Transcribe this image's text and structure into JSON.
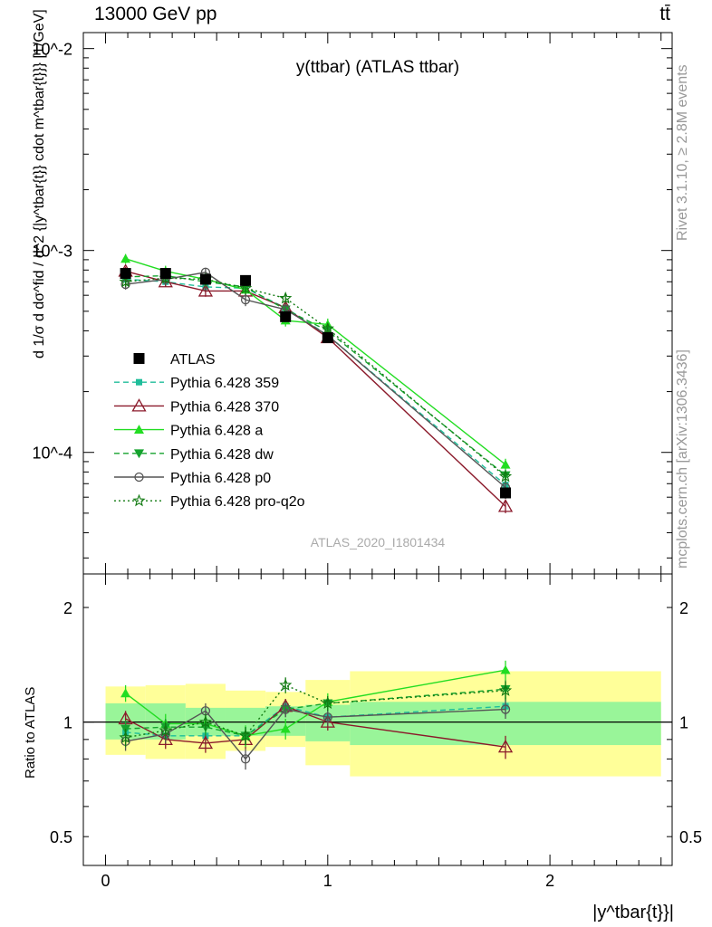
{
  "header": {
    "left": "13000 GeV pp",
    "right": "tt̄"
  },
  "side_labels": {
    "rivet": "Rivet 3.1.10, ≥ 2.8M events",
    "mcplots": "mcplots.cern.ch [arXiv:1306.3436]"
  },
  "plot": {
    "title": "y(ttbar) (ATLAS ttbar)",
    "watermark": "ATLAS_2020_I1801434",
    "ylabel_main": "d 1/σ d dσ^fid / d^2 {|y^tbar{t}} cdot m^tbar{t}}} [1/GeV]",
    "ylabel_ratio": "Ratio to ATLAS",
    "xlabel": "|y^tbar{t}}|"
  },
  "colors": {
    "data": "#000000",
    "p359": "#1fbd9a",
    "p370": "#8b1a2b",
    "pa": "#22dd22",
    "pdw": "#15a32e",
    "pp0": "#555555",
    "ppro": "#117a11",
    "band_inner": "#99f599",
    "band_outer": "#ffff99"
  },
  "chart_data": [
    {
      "type": "scatter",
      "yscale": "log",
      "xlim": [
        -0.1,
        2.55
      ],
      "ylim": [
        2.5e-05,
        0.012
      ],
      "x": [
        0.09,
        0.27,
        0.45,
        0.63,
        0.81,
        1.0,
        1.8
      ],
      "xerr": [
        0.09,
        0.09,
        0.09,
        0.09,
        0.09,
        0.1,
        0.7
      ],
      "yticks": [
        "10^-4",
        "10^-3",
        "10^-2"
      ],
      "series": [
        {
          "name": "ATLAS",
          "key": "data",
          "style": "solid",
          "marker": "square",
          "values": [
            0.00077,
            0.00077,
            0.00072,
            0.00071,
            0.00047,
            0.00037,
            6.3e-05
          ],
          "err": [
            3e-05,
            3e-05,
            3e-05,
            3e-05,
            2e-05,
            2e-05,
            4e-06
          ]
        },
        {
          "name": "Pythia 6.428 359",
          "key": "p359",
          "style": "dash",
          "marker": "square-small",
          "values": [
            0.00072,
            0.0007,
            0.00066,
            0.00065,
            0.00052,
            0.00038,
            6.9e-05
          ],
          "err": [
            4e-05,
            4e-05,
            4e-05,
            4e-05,
            3e-05,
            2e-05,
            5e-06
          ]
        },
        {
          "name": "Pythia 6.428 370",
          "key": "p370",
          "style": "solid",
          "marker": "triangle-open",
          "values": [
            0.00079,
            0.0007,
            0.00063,
            0.00063,
            0.00052,
            0.00037,
            5.4e-05
          ],
          "err": [
            4e-05,
            4e-05,
            4e-05,
            4e-05,
            3e-05,
            2e-05,
            4e-06
          ]
        },
        {
          "name": "Pythia 6.428 a",
          "key": "pa",
          "style": "solid",
          "marker": "triangle",
          "values": [
            0.00091,
            0.00079,
            0.00072,
            0.00064,
            0.00045,
            0.00043,
            8.7e-05
          ],
          "err": [
            5e-05,
            5e-05,
            4e-05,
            4e-05,
            3e-05,
            3e-05,
            6e-06
          ]
        },
        {
          "name": "Pythia 6.428 dw",
          "key": "pdw",
          "style": "dash",
          "marker": "triangle-down",
          "values": [
            0.00074,
            0.00075,
            0.0007,
            0.00066,
            0.00051,
            0.0004,
            7.7e-05
          ],
          "err": [
            4e-05,
            4e-05,
            4e-05,
            4e-05,
            3e-05,
            2e-05,
            5e-06
          ]
        },
        {
          "name": "Pythia 6.428 p0",
          "key": "pp0",
          "style": "solid",
          "marker": "circle-open",
          "values": [
            0.00068,
            0.00072,
            0.00078,
            0.00057,
            0.00051,
            0.00038,
            6.7e-05
          ],
          "err": [
            4e-05,
            4e-05,
            4e-05,
            4e-05,
            3e-05,
            2e-05,
            5e-06
          ]
        },
        {
          "name": "Pythia 6.428 pro-q2o",
          "key": "ppro",
          "style": "dot",
          "marker": "star",
          "values": [
            0.0007,
            0.00073,
            0.00072,
            0.00065,
            0.00058,
            0.00041,
            7.6e-05
          ],
          "err": [
            4e-05,
            4e-05,
            4e-05,
            4e-05,
            3e-05,
            2e-05,
            5e-06
          ]
        }
      ]
    },
    {
      "type": "scatter",
      "yscale": "log",
      "xlim": [
        -0.1,
        2.55
      ],
      "ylim": [
        0.42,
        2.45
      ],
      "yticks": [
        "0.5",
        "1",
        "2"
      ],
      "xticks": [
        "0",
        "1",
        "2"
      ],
      "x": [
        0.09,
        0.27,
        0.45,
        0.63,
        0.81,
        1.0,
        1.8
      ],
      "band_edges": [
        0.0,
        0.18,
        0.36,
        0.54,
        0.72,
        0.9,
        1.1,
        2.5
      ],
      "band_inner": [
        [
          0.9,
          1.12
        ],
        [
          0.9,
          1.12
        ],
        [
          0.92,
          1.09
        ],
        [
          0.92,
          1.09
        ],
        [
          0.92,
          1.1
        ],
        [
          0.89,
          1.11
        ],
        [
          0.87,
          1.13
        ]
      ],
      "band_outer": [
        [
          0.82,
          1.24
        ],
        [
          0.8,
          1.25
        ],
        [
          0.8,
          1.26
        ],
        [
          0.84,
          1.21
        ],
        [
          0.86,
          1.2
        ],
        [
          0.77,
          1.29
        ],
        [
          0.72,
          1.36
        ]
      ],
      "series": [
        {
          "name": "Pythia 6.428 359",
          "key": "p359",
          "style": "dash",
          "marker": "square-small",
          "values": [
            0.94,
            0.92,
            0.92,
            0.92,
            1.1,
            1.03,
            1.1
          ],
          "err": [
            0.05,
            0.05,
            0.05,
            0.05,
            0.05,
            0.05,
            0.06
          ]
        },
        {
          "name": "Pythia 6.428 370",
          "key": "p370",
          "style": "solid",
          "marker": "triangle-open",
          "values": [
            1.02,
            0.9,
            0.88,
            0.9,
            1.1,
            1.0,
            0.86
          ],
          "err": [
            0.05,
            0.05,
            0.05,
            0.05,
            0.05,
            0.05,
            0.06
          ]
        },
        {
          "name": "Pythia 6.428 a",
          "key": "pa",
          "style": "solid",
          "marker": "triangle",
          "values": [
            1.19,
            0.99,
            0.99,
            0.92,
            0.96,
            1.13,
            1.37
          ],
          "err": [
            0.06,
            0.06,
            0.06,
            0.06,
            0.06,
            0.06,
            0.08
          ]
        },
        {
          "name": "Pythia 6.428 dw",
          "key": "pdw",
          "style": "dash",
          "marker": "triangle-down",
          "values": [
            0.96,
            0.97,
            0.97,
            0.92,
            1.08,
            1.12,
            1.22
          ],
          "err": [
            0.05,
            0.05,
            0.05,
            0.05,
            0.05,
            0.05,
            0.07
          ]
        },
        {
          "name": "Pythia 6.428 p0",
          "key": "pp0",
          "style": "solid",
          "marker": "circle-open",
          "values": [
            0.89,
            0.93,
            1.07,
            0.8,
            1.08,
            1.03,
            1.08
          ],
          "err": [
            0.05,
            0.05,
            0.05,
            0.05,
            0.05,
            0.05,
            0.06
          ]
        },
        {
          "name": "Pythia 6.428 pro-q2o",
          "key": "ppro",
          "style": "dot",
          "marker": "star",
          "values": [
            0.91,
            0.95,
            1.0,
            0.92,
            1.25,
            1.12,
            1.21
          ],
          "err": [
            0.05,
            0.05,
            0.05,
            0.05,
            0.06,
            0.05,
            0.07
          ]
        }
      ]
    }
  ]
}
